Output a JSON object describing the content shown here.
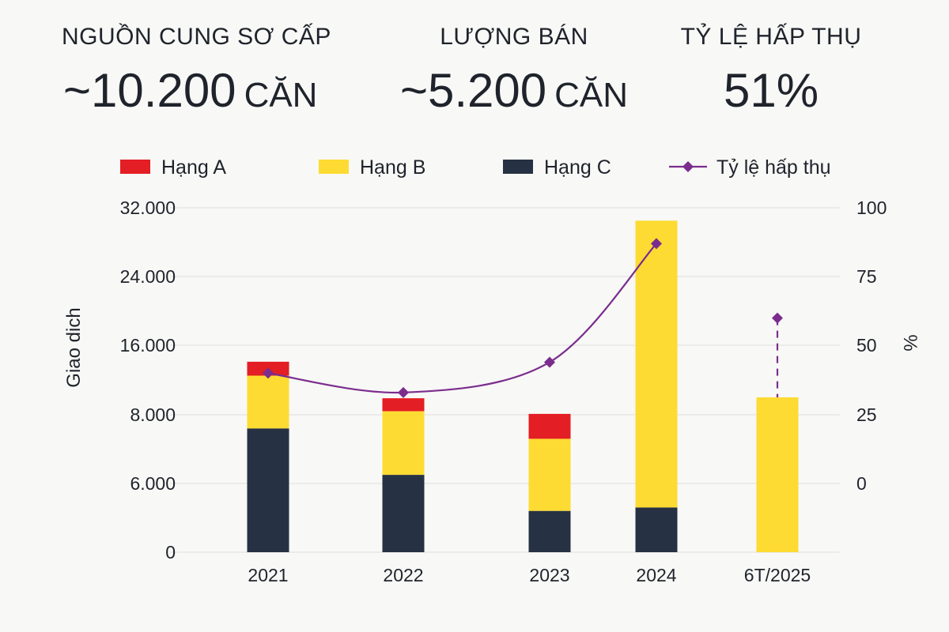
{
  "kpis": [
    {
      "label": "NGUỒN CUNG SƠ CẤP",
      "value": "~10.200",
      "unit": "CĂN"
    },
    {
      "label": "LƯỢNG BÁN",
      "value": "~5.200",
      "unit": "CĂN"
    },
    {
      "label": "TỶ LỆ HẤP THỤ",
      "value": "51%",
      "unit": ""
    }
  ],
  "colors": {
    "hang_a": "#e31e24",
    "hang_b": "#fddb32",
    "hang_c": "#263244",
    "line": "#7b2d8e",
    "grid": "#dedede"
  },
  "chart_data": {
    "type": "bar",
    "stacked": true,
    "categories": [
      "2021",
      "2022",
      "2023",
      "2024",
      "6T/2025"
    ],
    "series": [
      {
        "name": "Hạng A",
        "color_key": "hang_a",
        "bottom": [
          12500,
          8400,
          6600,
          null,
          null
        ],
        "top": [
          14100,
          9900,
          8100,
          null,
          null
        ]
      },
      {
        "name": "Hạng B",
        "color_key": "hang_b",
        "bottom": [
          7200,
          4500,
          2400,
          2600,
          0
        ],
        "top": [
          12500,
          8400,
          6600,
          30500,
          10000
        ]
      },
      {
        "name": "Hạng C",
        "color_key": "hang_c",
        "bottom": [
          0,
          0,
          0,
          0,
          null
        ],
        "top": [
          7200,
          4500,
          2400,
          2600,
          null
        ]
      }
    ],
    "line_series": {
      "name": "Tỷ lệ hấp thụ",
      "values": [
        40,
        33,
        44,
        87,
        60
      ],
      "dashed_last": true
    },
    "y_left": {
      "label": "Giao dich",
      "ticks": [
        "0",
        "6.000",
        "8.000",
        "16.000",
        "24.000",
        "32.000"
      ]
    },
    "y_right": {
      "label": "%",
      "ticks": [
        "0",
        "25",
        "50",
        "75",
        "100"
      ]
    },
    "grid": true,
    "legend_position": "top"
  }
}
